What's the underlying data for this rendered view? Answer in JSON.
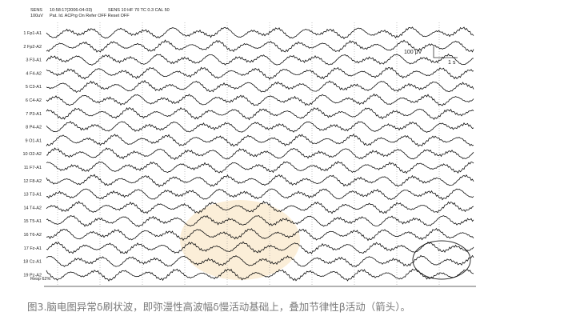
{
  "header": {
    "sens": "SENS",
    "sens_value": "100uV",
    "time": "10:58:17(2006-04-03)",
    "settings": "SENS 10 HF 70 TC 0.3 CAL 50",
    "patient": "Pat. Id. ACPrg On Refer OFF Reset OFF"
  },
  "channels": [
    "1 Fp1-A1",
    "2 Fp2-A2",
    "3 F3-A1",
    "4 F4-A2",
    "5 C3-A1",
    "6 C4-A2",
    "7 P3-A1",
    "8 P4-A2",
    "9 O1-A1",
    "10 O2-A2",
    "11 F7-A1",
    "12 F8-A2",
    "13 T3-A1",
    "14 T4-A2",
    "15 T5-A1",
    "16 T6-A2",
    "17 Fz-A1",
    "18 Cz-A1",
    "19 Pz-A2"
  ],
  "scale": {
    "amplitude": "100 μV",
    "time": "1 s"
  },
  "footer": "Resp 62%",
  "caption": "图3.脑电图异常δ刷状波，即弥漫性高波幅δ慢活动基础上，叠加节律性β活动（箭头）。"
}
